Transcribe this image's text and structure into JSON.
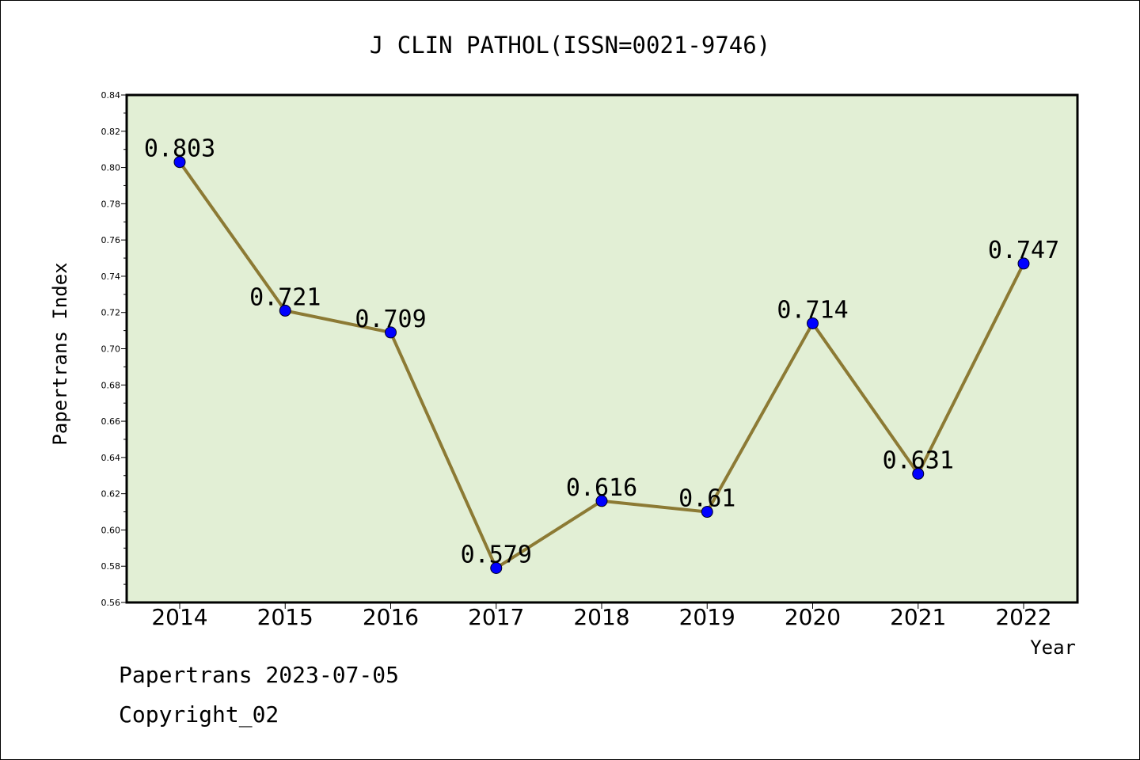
{
  "chart_data": {
    "type": "line",
    "title": "J CLIN PATHOL(ISSN=0021-9746)",
    "xlabel": "Year",
    "ylabel": "Papertrans Index",
    "categories": [
      "2014",
      "2015",
      "2016",
      "2017",
      "2018",
      "2019",
      "2020",
      "2021",
      "2022"
    ],
    "values": [
      0.803,
      0.721,
      0.709,
      0.579,
      0.616,
      0.61,
      0.714,
      0.631,
      0.747
    ],
    "data_labels": [
      "0.803",
      "0.721",
      "0.709",
      "0.579",
      "0.616",
      "0.61",
      "0.714",
      "0.631",
      "0.747"
    ],
    "ylim": [
      0.56,
      0.84
    ],
    "yticks": [
      "0.56",
      "0.58",
      "0.60",
      "0.62",
      "0.64",
      "0.66",
      "0.68",
      "0.70",
      "0.72",
      "0.74",
      "0.76",
      "0.78",
      "0.80",
      "0.82",
      "0.84"
    ],
    "grid": false,
    "colors": {
      "plot_background": "#e2efd5",
      "line": "#8c7a34",
      "marker": "#0000ff"
    }
  },
  "footer": {
    "line1": "Papertrans 2023-07-05",
    "line2": "Copyright_02"
  }
}
